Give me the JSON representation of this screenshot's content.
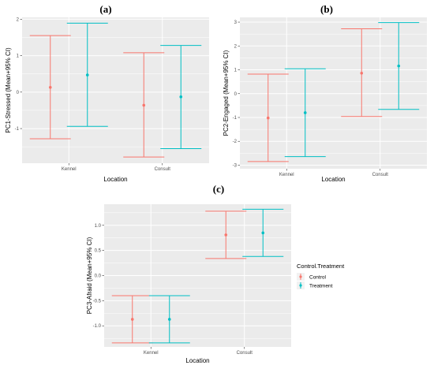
{
  "colors": {
    "control": "#F8766D",
    "treatment": "#00BFC4",
    "panel_bg": "#EBEBEB",
    "grid": "#FFFFFF"
  },
  "legend": {
    "title": "Control.Treatment",
    "items": [
      "Control",
      "Treatment"
    ],
    "placement": "right"
  },
  "chart_data": [
    {
      "panel": "(a)",
      "type": "errorbar",
      "categories": [
        "Kennel",
        "Consult"
      ],
      "xlabel": "Location",
      "ylabel": "PC1-Stressed (Mean+95% CI)",
      "ylim": [
        -1.95,
        2.05
      ],
      "yticks": [
        -1,
        0,
        1,
        2
      ],
      "yticklabels": [
        "-1",
        "0",
        "1",
        "2"
      ],
      "grid": true,
      "series": [
        {
          "name": "Control",
          "means": [
            0.13,
            -0.36
          ],
          "lower": [
            -1.28,
            -1.78
          ],
          "upper": [
            1.55,
            1.08
          ]
        },
        {
          "name": "Treatment",
          "means": [
            0.47,
            -0.13
          ],
          "lower": [
            -0.94,
            -1.55
          ],
          "upper": [
            1.89,
            1.28
          ]
        }
      ]
    },
    {
      "panel": "(b)",
      "type": "errorbar",
      "categories": [
        "Kennel",
        "Consult"
      ],
      "xlabel": "Location",
      "ylabel": "PC2-Engaged (Mean+95% CI)",
      "ylim": [
        -3.15,
        3.2
      ],
      "yticks": [
        -3,
        -2,
        -1,
        0,
        1,
        2,
        3
      ],
      "yticklabels": [
        "-3",
        "-2",
        "-1",
        "0",
        "1",
        "2",
        "3"
      ],
      "grid": true,
      "series": [
        {
          "name": "Control",
          "means": [
            -1.02,
            0.86
          ],
          "lower": [
            -2.85,
            -0.96
          ],
          "upper": [
            0.82,
            2.72
          ]
        },
        {
          "name": "Treatment",
          "means": [
            -0.8,
            1.16
          ],
          "lower": [
            -2.64,
            -0.66
          ],
          "upper": [
            1.04,
            2.98
          ]
        }
      ]
    },
    {
      "panel": "(c)",
      "type": "errorbar",
      "categories": [
        "Kennel",
        "Consult"
      ],
      "xlabel": "Location",
      "ylabel": "PC3-Afraid (Mean+95% CI)",
      "ylim": [
        -1.42,
        1.42
      ],
      "yticks": [
        -1.0,
        -0.5,
        0.0,
        0.5,
        1.0
      ],
      "yticklabels": [
        "-1.0",
        "-0.5",
        "0.0",
        "0.5",
        "1.0"
      ],
      "grid": true,
      "series": [
        {
          "name": "Control",
          "means": [
            -0.87,
            0.81
          ],
          "lower": [
            -1.34,
            0.34
          ],
          "upper": [
            -0.4,
            1.28
          ]
        },
        {
          "name": "Treatment",
          "means": [
            -0.87,
            0.85
          ],
          "lower": [
            -1.34,
            0.38
          ],
          "upper": [
            -0.4,
            1.32
          ]
        }
      ]
    }
  ]
}
